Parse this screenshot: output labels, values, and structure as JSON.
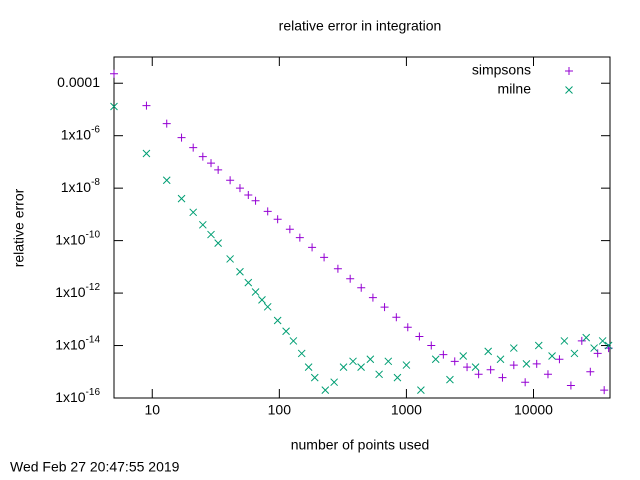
{
  "chart_data": {
    "type": "scatter",
    "title": "relative error in integration",
    "xlabel": "number of points used",
    "ylabel": "relative error",
    "timestamp": "Wed Feb 27 20:47:55 2019",
    "xscale": "log",
    "yscale": "log",
    "xlim": [
      5,
      40000
    ],
    "ylim": [
      1e-16,
      0.001
    ],
    "xticks": [
      10,
      100,
      1000,
      10000
    ],
    "yticks": [
      0.0001,
      {
        "value": 1e-06,
        "label": "1x10",
        "exponent": "-6"
      },
      {
        "value": 1e-08,
        "label": "1x10",
        "exponent": "-8"
      },
      {
        "value": 1e-10,
        "label": "1x10",
        "exponent": "-10"
      },
      {
        "value": 1e-12,
        "label": "1x10",
        "exponent": "-12"
      },
      {
        "value": 1e-14,
        "label": "1x10",
        "exponent": "-14"
      },
      {
        "value": 1e-16,
        "label": "1x10",
        "exponent": "-16"
      }
    ],
    "legend": "top-right",
    "series": [
      {
        "name": "simpsons",
        "color": "#9400d3",
        "marker": "plus",
        "x": [
          5,
          9,
          13,
          17,
          21,
          25,
          29,
          33,
          41,
          49,
          57,
          65,
          81,
          97,
          121,
          145,
          181,
          225,
          289,
          361,
          441,
          545,
          673,
          833,
          1025,
          1265,
          1569,
          1953,
          2401,
          3001,
          3700,
          4600,
          5700,
          7000,
          8600,
          10600,
          13000,
          16000,
          19700,
          24000,
          28000,
          32000,
          36000,
          39000
        ],
        "values": [
          0.00023,
          1.4e-05,
          2.9e-06,
          8.4e-07,
          3.5e-07,
          1.6e-07,
          9e-08,
          5e-08,
          2e-08,
          1e-08,
          5.5e-09,
          3.3e-09,
          1.3e-09,
          6.5e-10,
          2.7e-10,
          1.3e-10,
          5.5e-11,
          2.3e-11,
          8.5e-12,
          3.5e-12,
          1.6e-12,
          6.7e-13,
          2.9e-13,
          1.2e-13,
          5e-14,
          2.2e-14,
          1e-14,
          4.5e-15,
          2.5e-15,
          1.5e-15,
          8e-16,
          1.2e-15,
          6e-16,
          1.8e-15,
          4e-16,
          2e-15,
          8e-16,
          3e-15,
          3e-16,
          1.5e-14,
          1e-15,
          5e-15,
          2e-16,
          8e-15
        ]
      },
      {
        "name": "milne",
        "color": "#009e73",
        "marker": "cross",
        "x": [
          5,
          9,
          13,
          17,
          21,
          25,
          29,
          33,
          41,
          49,
          57,
          65,
          73,
          81,
          97,
          113,
          129,
          150,
          170,
          190,
          230,
          270,
          320,
          380,
          440,
          520,
          610,
          720,
          850,
          1000,
          1300,
          1700,
          2200,
          2800,
          3500,
          4400,
          5500,
          7000,
          8800,
          11000,
          14000,
          17500,
          21000,
          26000,
          30000,
          35000,
          39000
        ],
        "values": [
          1.3e-05,
          2.1e-07,
          2e-08,
          4e-09,
          1.2e-09,
          4e-10,
          1.7e-10,
          8e-11,
          2e-11,
          6.5e-12,
          2.5e-12,
          1.1e-12,
          5.5e-13,
          3e-13,
          9e-14,
          3.5e-14,
          1.5e-14,
          5e-15,
          1.5e-15,
          6e-16,
          2e-16,
          4e-16,
          1.5e-15,
          2.5e-15,
          1.5e-15,
          3e-15,
          8e-16,
          2.5e-15,
          6e-16,
          1.8e-15,
          2e-16,
          3e-15,
          5e-16,
          4e-15,
          1.5e-15,
          6e-15,
          3e-15,
          8e-15,
          2e-15,
          1e-14,
          4e-15,
          1.5e-14,
          5e-15,
          2e-14,
          8e-15,
          1.5e-14,
          1e-14
        ]
      }
    ]
  }
}
